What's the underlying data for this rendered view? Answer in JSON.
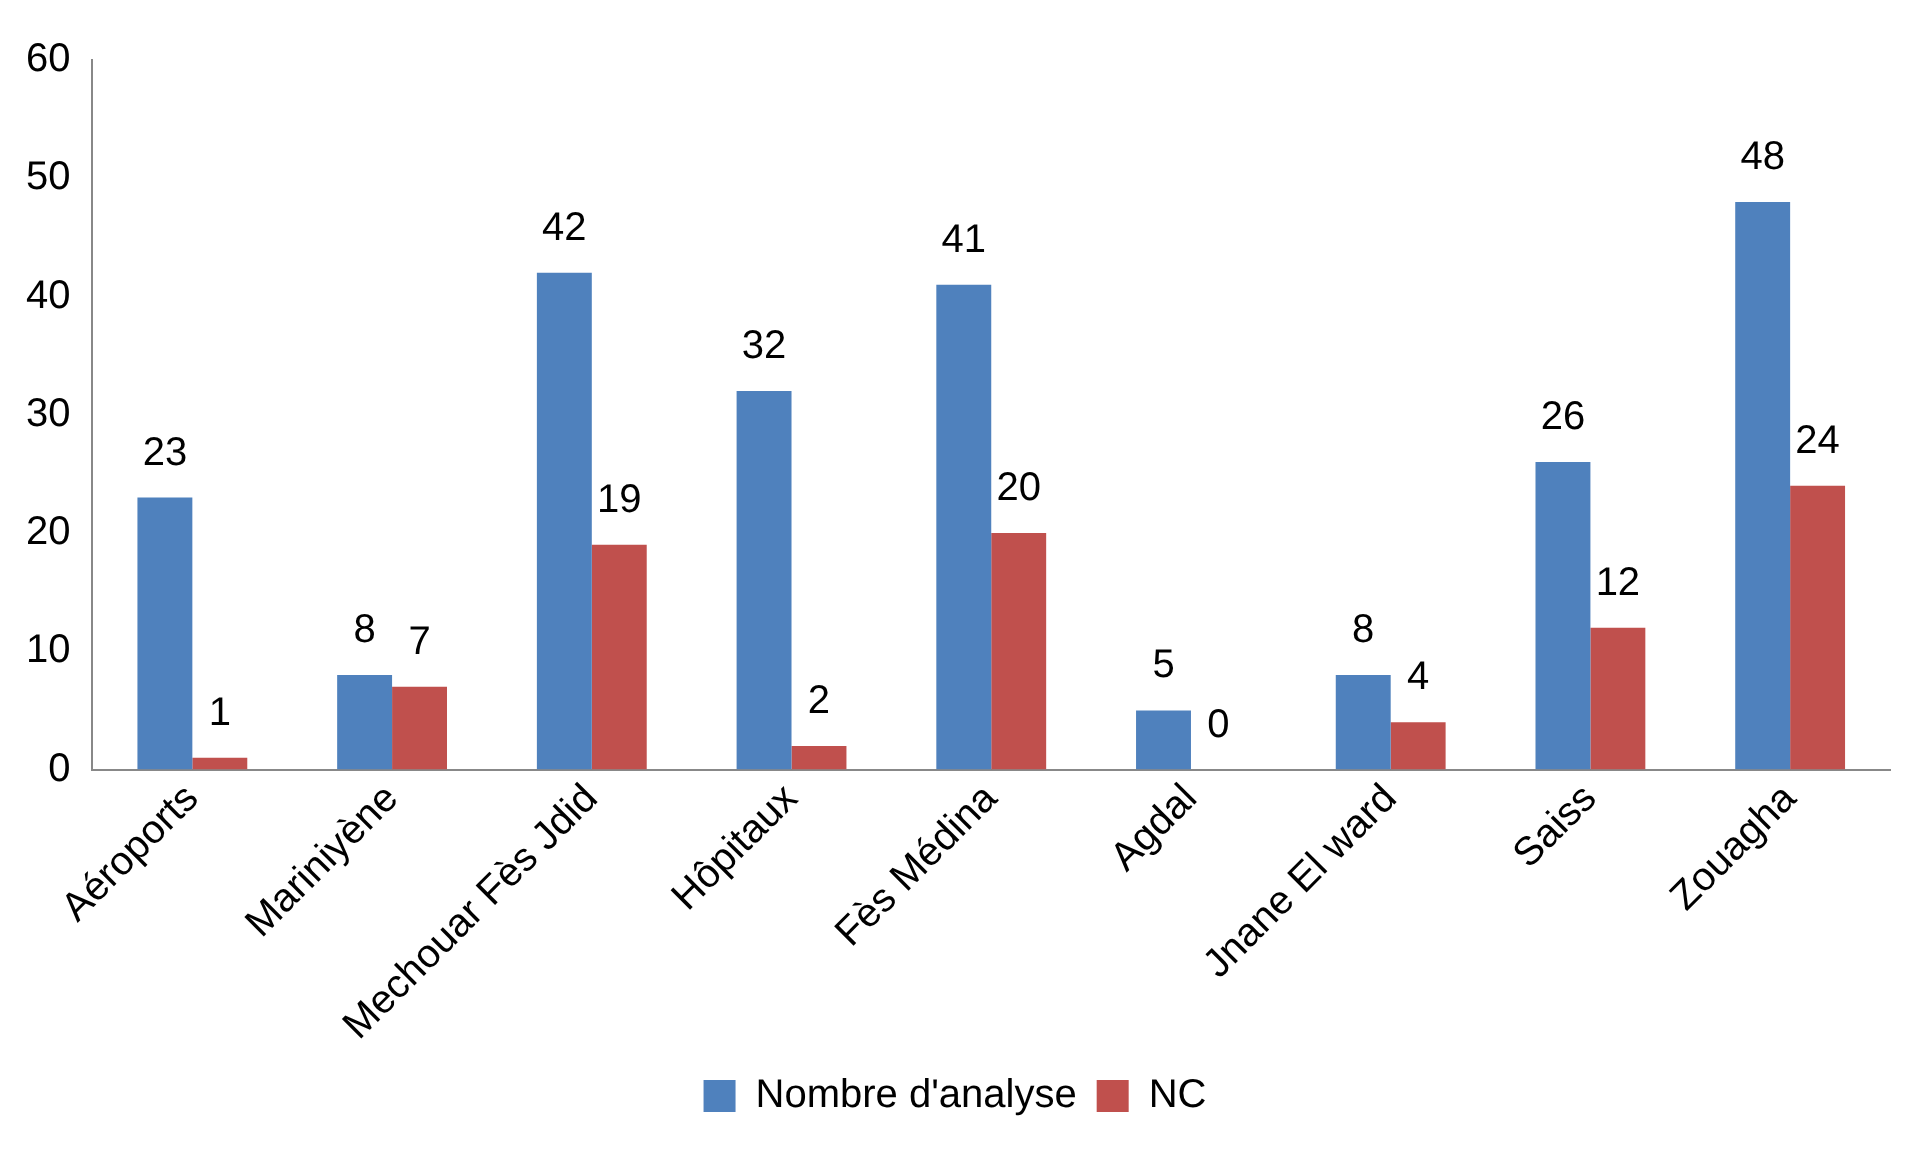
{
  "chart_data": {
    "type": "bar",
    "categories": [
      "Aéroports",
      "Mariniyène",
      "Mechouar Fès Jdid",
      "Hôpitaux",
      "Fès Médina",
      "Agdal",
      "Jnane El ward",
      "Saiss",
      "Zouagha"
    ],
    "series": [
      {
        "name": "Nombre d'analyse",
        "color": "#4f81bd",
        "values": [
          23,
          8,
          42,
          32,
          41,
          5,
          8,
          26,
          48
        ]
      },
      {
        "name": "NC",
        "color": "#c0504d",
        "values": [
          1,
          7,
          19,
          2,
          20,
          0,
          4,
          12,
          24
        ]
      }
    ],
    "ylim": [
      0,
      60
    ],
    "yticks": [
      0,
      10,
      20,
      30,
      40,
      50,
      60
    ],
    "grid": false,
    "legend": "bottom",
    "data_labels": true
  }
}
